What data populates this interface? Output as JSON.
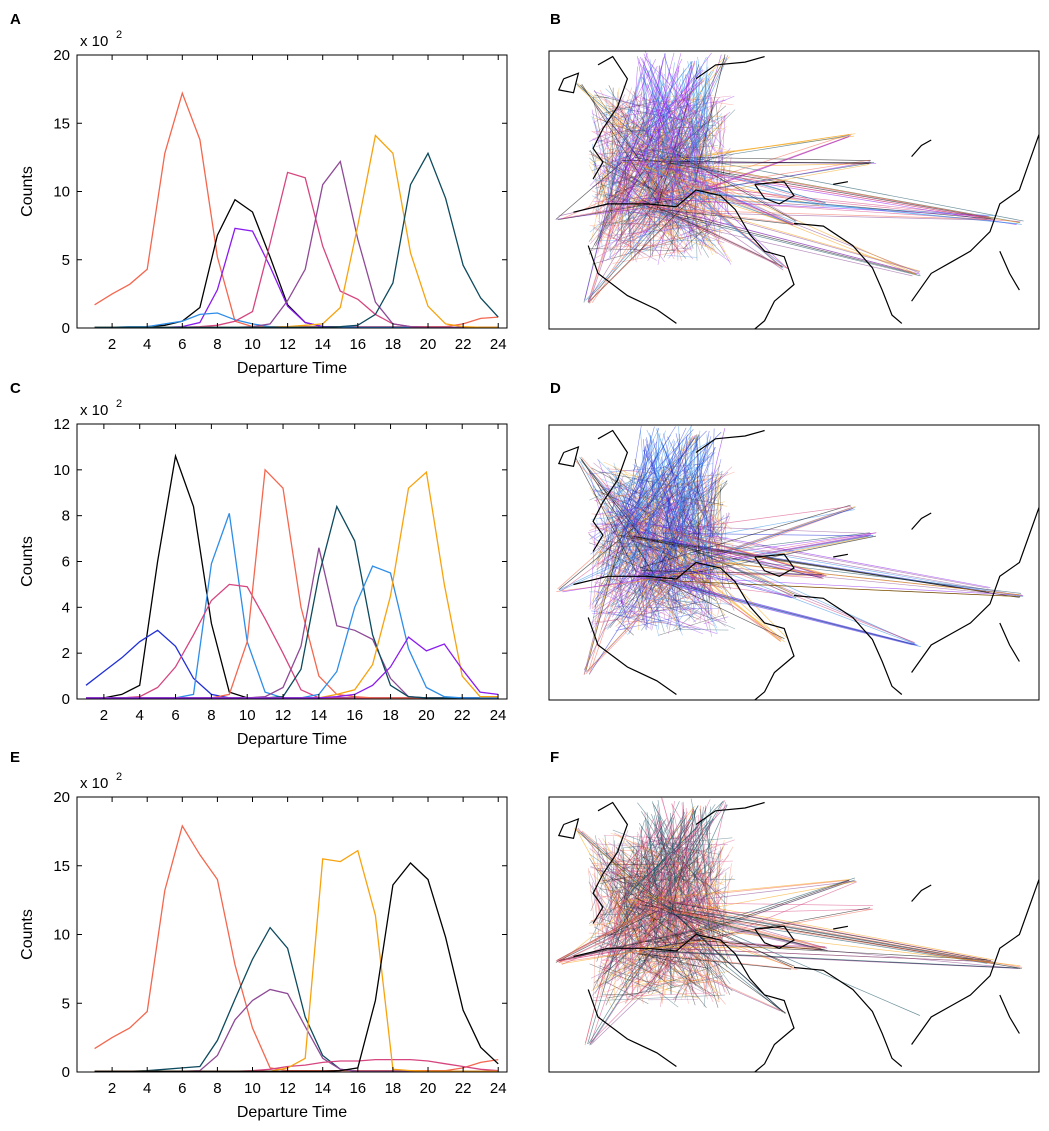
{
  "figure": {
    "panel_letters": [
      "A",
      "B",
      "C",
      "D",
      "E",
      "F"
    ]
  },
  "chart_data": [
    {
      "panel": "A",
      "type": "line",
      "xlabel": "Departure Time",
      "ylabel": "Counts",
      "y_scale_label": "x 10",
      "y_scale_exponent": "2",
      "xlim": [
        0,
        24.5
      ],
      "ylim": [
        0,
        20
      ],
      "xticks": [
        2,
        4,
        6,
        8,
        10,
        12,
        14,
        16,
        18,
        20,
        22,
        24
      ],
      "yticks": [
        0,
        5,
        10,
        15,
        20
      ],
      "grid": false,
      "x": [
        1,
        2,
        3,
        4,
        5,
        6,
        7,
        8,
        9,
        10,
        11,
        12,
        13,
        14,
        15,
        16,
        17,
        18,
        19,
        20,
        21,
        22,
        23,
        24
      ],
      "series": [
        {
          "color": "#f4674f",
          "values": [
            1.7,
            2.5,
            3.2,
            4.3,
            12.8,
            17.2,
            13.8,
            5.2,
            0.5,
            0.1,
            0.1,
            0.1,
            0.1,
            0.1,
            0.1,
            0.1,
            0.1,
            0.1,
            0.1,
            0.1,
            0.1,
            0.3,
            0.7,
            0.8
          ]
        },
        {
          "color": "#000000",
          "values": [
            0.05,
            0.05,
            0.05,
            0.1,
            0.2,
            0.5,
            1.5,
            6.8,
            9.4,
            8.5,
            5.2,
            1.7,
            0.4,
            0.1,
            0.05,
            0.05,
            0.05,
            0.05,
            0.05,
            0.05,
            0.05,
            0.05,
            0.05,
            0.05
          ]
        },
        {
          "color": "#8a1bf0",
          "values": [
            0.05,
            0.05,
            0.05,
            0.05,
            0.05,
            0.1,
            0.4,
            2.8,
            7.3,
            7.1,
            4.5,
            1.6,
            0.4,
            0.1,
            0.05,
            0.05,
            0.05,
            0.05,
            0.05,
            0.05,
            0.05,
            0.05,
            0.05,
            0.05
          ]
        },
        {
          "color": "#2e8de8",
          "values": [
            0.05,
            0.05,
            0.1,
            0.1,
            0.3,
            0.5,
            1.0,
            1.1,
            0.6,
            0.3,
            0.1,
            0.05,
            0.05,
            0.05,
            0.05,
            0.05,
            0.05,
            0.05,
            0.05,
            0.05,
            0.05,
            0.05,
            0.05,
            0.05
          ]
        },
        {
          "color": "#d6457f",
          "values": [
            0.05,
            0.05,
            0.05,
            0.05,
            0.05,
            0.05,
            0.1,
            0.2,
            0.5,
            1.2,
            6.2,
            11.4,
            11.0,
            6.0,
            2.7,
            2.1,
            1.0,
            0.3,
            0.1,
            0.05,
            0.05,
            0.05,
            0.05,
            0.05
          ]
        },
        {
          "color": "#8e4a96",
          "values": [
            0.05,
            0.05,
            0.05,
            0.05,
            0.05,
            0.05,
            0.05,
            0.05,
            0.05,
            0.1,
            0.3,
            2.0,
            4.3,
            10.5,
            12.2,
            6.5,
            1.9,
            0.3,
            0.1,
            0.05,
            0.05,
            0.05,
            0.05,
            0.05
          ]
        },
        {
          "color": "#f7a20e",
          "values": [
            0.05,
            0.05,
            0.05,
            0.05,
            0.05,
            0.05,
            0.05,
            0.05,
            0.05,
            0.05,
            0.05,
            0.1,
            0.2,
            0.3,
            1.5,
            7.5,
            14.1,
            12.8,
            5.5,
            1.6,
            0.3,
            0.1,
            0.05,
            0.05
          ]
        },
        {
          "color": "#0d4a5e",
          "values": [
            0.05,
            0.05,
            0.05,
            0.05,
            0.05,
            0.05,
            0.05,
            0.05,
            0.05,
            0.05,
            0.05,
            0.05,
            0.05,
            0.05,
            0.1,
            0.2,
            1.0,
            3.3,
            10.5,
            12.8,
            9.5,
            4.6,
            2.2,
            0.8
          ]
        }
      ]
    },
    {
      "panel": "C",
      "type": "line",
      "xlabel": "Departure Time",
      "ylabel": "Counts",
      "y_scale_label": "x 10",
      "y_scale_exponent": "2",
      "xlim": [
        0.5,
        24.5
      ],
      "ylim": [
        0,
        12
      ],
      "xticks": [
        2,
        4,
        6,
        8,
        10,
        12,
        14,
        16,
        18,
        20,
        22,
        24
      ],
      "yticks": [
        0,
        2,
        4,
        6,
        8,
        10,
        12
      ],
      "grid": false,
      "x": [
        1,
        2,
        3,
        4,
        5,
        6,
        7,
        8,
        9,
        10,
        11,
        12,
        13,
        14,
        15,
        16,
        17,
        18,
        19,
        20,
        21,
        22,
        23,
        24
      ],
      "series": [
        {
          "color": "#000000",
          "values": [
            0.05,
            0.05,
            0.2,
            0.6,
            6.0,
            10.6,
            8.4,
            3.3,
            0.3,
            0.05,
            0.05,
            0.05,
            0.05,
            0.05,
            0.05,
            0.05,
            0.05,
            0.05,
            0.05,
            0.05,
            0.05,
            0.05,
            0.05,
            0.05
          ]
        },
        {
          "color": "#1f2fd6",
          "values": [
            0.6,
            1.2,
            1.8,
            2.5,
            3.0,
            2.3,
            0.9,
            0.2,
            0.05,
            0.05,
            0.05,
            0.05,
            0.05,
            0.05,
            0.05,
            0.05,
            0.05,
            0.05,
            0.05,
            0.05,
            0.05,
            0.05,
            0.05,
            0.05
          ]
        },
        {
          "color": "#2e8de8",
          "values": [
            0.05,
            0.05,
            0.05,
            0.05,
            0.05,
            0.05,
            0.2,
            5.9,
            8.1,
            2.5,
            0.3,
            0.05,
            0.05,
            0.05,
            0.05,
            0.05,
            0.05,
            0.05,
            0.05,
            0.05,
            0.05,
            0.05,
            0.05,
            0.05
          ]
        },
        {
          "color": "#d6457f",
          "values": [
            0.05,
            0.05,
            0.05,
            0.1,
            0.5,
            1.4,
            2.8,
            4.3,
            5.0,
            4.9,
            3.5,
            2.0,
            0.4,
            0.05,
            0.05,
            0.05,
            0.05,
            0.05,
            0.05,
            0.05,
            0.05,
            0.05,
            0.05,
            0.05
          ]
        },
        {
          "color": "#f4674f",
          "values": [
            0.05,
            0.05,
            0.05,
            0.05,
            0.05,
            0.05,
            0.05,
            0.05,
            0.2,
            2.5,
            10.0,
            9.2,
            4.0,
            1.0,
            0.2,
            0.1,
            0.05,
            0.05,
            0.05,
            0.05,
            0.05,
            0.05,
            0.05,
            0.05
          ]
        },
        {
          "color": "#8e4a96",
          "values": [
            0.05,
            0.05,
            0.05,
            0.05,
            0.05,
            0.05,
            0.05,
            0.05,
            0.05,
            0.05,
            0.1,
            0.5,
            2.3,
            6.6,
            3.2,
            3.0,
            2.6,
            0.9,
            0.1,
            0.05,
            0.05,
            0.05,
            0.05,
            0.05
          ]
        },
        {
          "color": "#0d4a5e",
          "values": [
            0.05,
            0.05,
            0.05,
            0.05,
            0.05,
            0.05,
            0.05,
            0.05,
            0.05,
            0.05,
            0.05,
            0.1,
            1.3,
            5.4,
            8.4,
            6.9,
            2.8,
            0.6,
            0.1,
            0.05,
            0.05,
            0.05,
            0.05,
            0.05
          ]
        },
        {
          "color": "#2e8de8",
          "values": [
            0.05,
            0.05,
            0.05,
            0.05,
            0.05,
            0.05,
            0.05,
            0.05,
            0.05,
            0.05,
            0.05,
            0.05,
            0.05,
            0.2,
            1.2,
            4.0,
            5.8,
            5.5,
            2.2,
            0.5,
            0.1,
            0.05,
            0.05,
            0.05
          ]
        },
        {
          "color": "#f7a20e",
          "values": [
            0.05,
            0.05,
            0.05,
            0.05,
            0.05,
            0.05,
            0.05,
            0.05,
            0.05,
            0.05,
            0.05,
            0.05,
            0.05,
            0.05,
            0.2,
            0.4,
            1.5,
            4.5,
            9.2,
            9.9,
            5.0,
            1.0,
            0.1,
            0.1
          ]
        },
        {
          "color": "#8a1bf0",
          "values": [
            0.05,
            0.05,
            0.05,
            0.05,
            0.05,
            0.05,
            0.05,
            0.05,
            0.05,
            0.05,
            0.05,
            0.05,
            0.05,
            0.05,
            0.1,
            0.2,
            0.6,
            1.4,
            2.7,
            2.1,
            2.4,
            1.3,
            0.3,
            0.2
          ]
        }
      ]
    },
    {
      "panel": "E",
      "type": "line",
      "xlabel": "Departure Time",
      "ylabel": "Counts",
      "y_scale_label": "x 10",
      "y_scale_exponent": "2",
      "xlim": [
        0,
        24.5
      ],
      "ylim": [
        0,
        20
      ],
      "xticks": [
        2,
        4,
        6,
        8,
        10,
        12,
        14,
        16,
        18,
        20,
        22,
        24
      ],
      "yticks": [
        0,
        5,
        10,
        15,
        20
      ],
      "grid": false,
      "x": [
        1,
        2,
        3,
        4,
        5,
        6,
        7,
        8,
        9,
        10,
        11,
        12,
        13,
        14,
        15,
        16,
        17,
        18,
        19,
        20,
        21,
        22,
        23,
        24
      ],
      "series": [
        {
          "color": "#f4674f",
          "values": [
            1.7,
            2.5,
            3.2,
            4.4,
            13.2,
            17.9,
            15.8,
            14.0,
            7.8,
            3.2,
            0.3,
            0.1,
            0.1,
            0.1,
            0.1,
            0.1,
            0.1,
            0.1,
            0.1,
            0.1,
            0.1,
            0.3,
            0.7,
            0.9
          ]
        },
        {
          "color": "#0d4a5e",
          "values": [
            0.05,
            0.05,
            0.05,
            0.1,
            0.2,
            0.3,
            0.4,
            2.3,
            5.3,
            8.2,
            10.5,
            9.0,
            4.0,
            1.2,
            0.2,
            0.05,
            0.05,
            0.05,
            0.05,
            0.05,
            0.05,
            0.05,
            0.05,
            0.05
          ]
        },
        {
          "color": "#8e4a96",
          "values": [
            0.05,
            0.05,
            0.05,
            0.05,
            0.05,
            0.05,
            0.1,
            1.2,
            3.8,
            5.2,
            6.0,
            5.7,
            3.3,
            1.0,
            0.2,
            0.05,
            0.05,
            0.05,
            0.05,
            0.05,
            0.05,
            0.05,
            0.05,
            0.05
          ]
        },
        {
          "color": "#d6457f",
          "values": [
            0.05,
            0.05,
            0.05,
            0.05,
            0.05,
            0.05,
            0.05,
            0.05,
            0.05,
            0.1,
            0.2,
            0.4,
            0.5,
            0.7,
            0.8,
            0.8,
            0.9,
            0.9,
            0.9,
            0.8,
            0.6,
            0.4,
            0.2,
            0.1
          ]
        },
        {
          "color": "#f7a20e",
          "values": [
            0.05,
            0.05,
            0.05,
            0.05,
            0.05,
            0.05,
            0.05,
            0.05,
            0.05,
            0.05,
            0.05,
            0.3,
            1.0,
            15.5,
            15.3,
            16.1,
            11.4,
            0.2,
            0.1,
            0.05,
            0.05,
            0.05,
            0.05,
            0.05
          ]
        },
        {
          "color": "#000000",
          "values": [
            0.05,
            0.05,
            0.05,
            0.05,
            0.05,
            0.05,
            0.05,
            0.05,
            0.05,
            0.05,
            0.05,
            0.05,
            0.05,
            0.05,
            0.1,
            0.3,
            5.2,
            13.6,
            15.2,
            14.0,
            9.8,
            4.5,
            1.8,
            0.6
          ]
        }
      ]
    }
  ],
  "maps": [
    {
      "panel": "B",
      "series_colors": [
        "#2e8de8",
        "#8a1bf0",
        "#8e4a96",
        "#0d4a5e",
        "#000000",
        "#f7a20e",
        "#f4674f",
        "#d6457f"
      ]
    },
    {
      "panel": "D",
      "series_colors": [
        "#2e8de8",
        "#1f2fd6",
        "#8e4a96",
        "#8a1bf0",
        "#0d4a5e",
        "#000000",
        "#f7a20e",
        "#f4674f",
        "#d6457f"
      ]
    },
    {
      "panel": "F",
      "series_colors": [
        "#d6457f",
        "#0d4a5e",
        "#8e4a96",
        "#f7a20e",
        "#f4674f",
        "#000000"
      ]
    }
  ]
}
